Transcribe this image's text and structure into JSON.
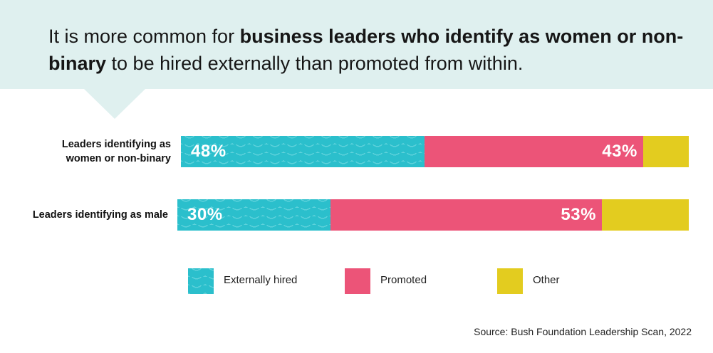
{
  "headline": {
    "part1": "It is more common for ",
    "bold": "business leaders who identify as women or non-binary",
    "part2": " to be hired externally than promoted from within."
  },
  "colors": {
    "banner": "#dff0ef",
    "externally_hired": "#2bbfcc",
    "externally_hired_wave": "#5fd2db",
    "promoted": "#ec5478",
    "other": "#e3cc1f"
  },
  "chart_data": {
    "type": "bar",
    "orientation": "horizontal",
    "stacked": true,
    "categories": [
      "Leaders identifying as women or non-binary",
      "Leaders identifying as male"
    ],
    "category_label_lines": [
      [
        "Leaders identifying as",
        "women or non-binary"
      ],
      [
        "Leaders identifying as male"
      ]
    ],
    "series": [
      {
        "name": "Externally hired",
        "values": [
          48,
          30
        ],
        "data_labels": [
          "48%",
          "30%"
        ],
        "pattern": "wave"
      },
      {
        "name": "Promoted",
        "values": [
          43,
          53
        ],
        "data_labels": [
          "43%",
          "53%"
        ]
      },
      {
        "name": "Other",
        "values": [
          9,
          17
        ],
        "data_labels": [
          "",
          ""
        ]
      }
    ],
    "xlim": [
      0,
      100
    ],
    "unit": "%",
    "legend_position": "bottom"
  },
  "legend": {
    "items": [
      "Externally hired",
      "Promoted",
      "Other"
    ]
  },
  "source": "Source: Bush Foundation Leadership Scan, 2022"
}
